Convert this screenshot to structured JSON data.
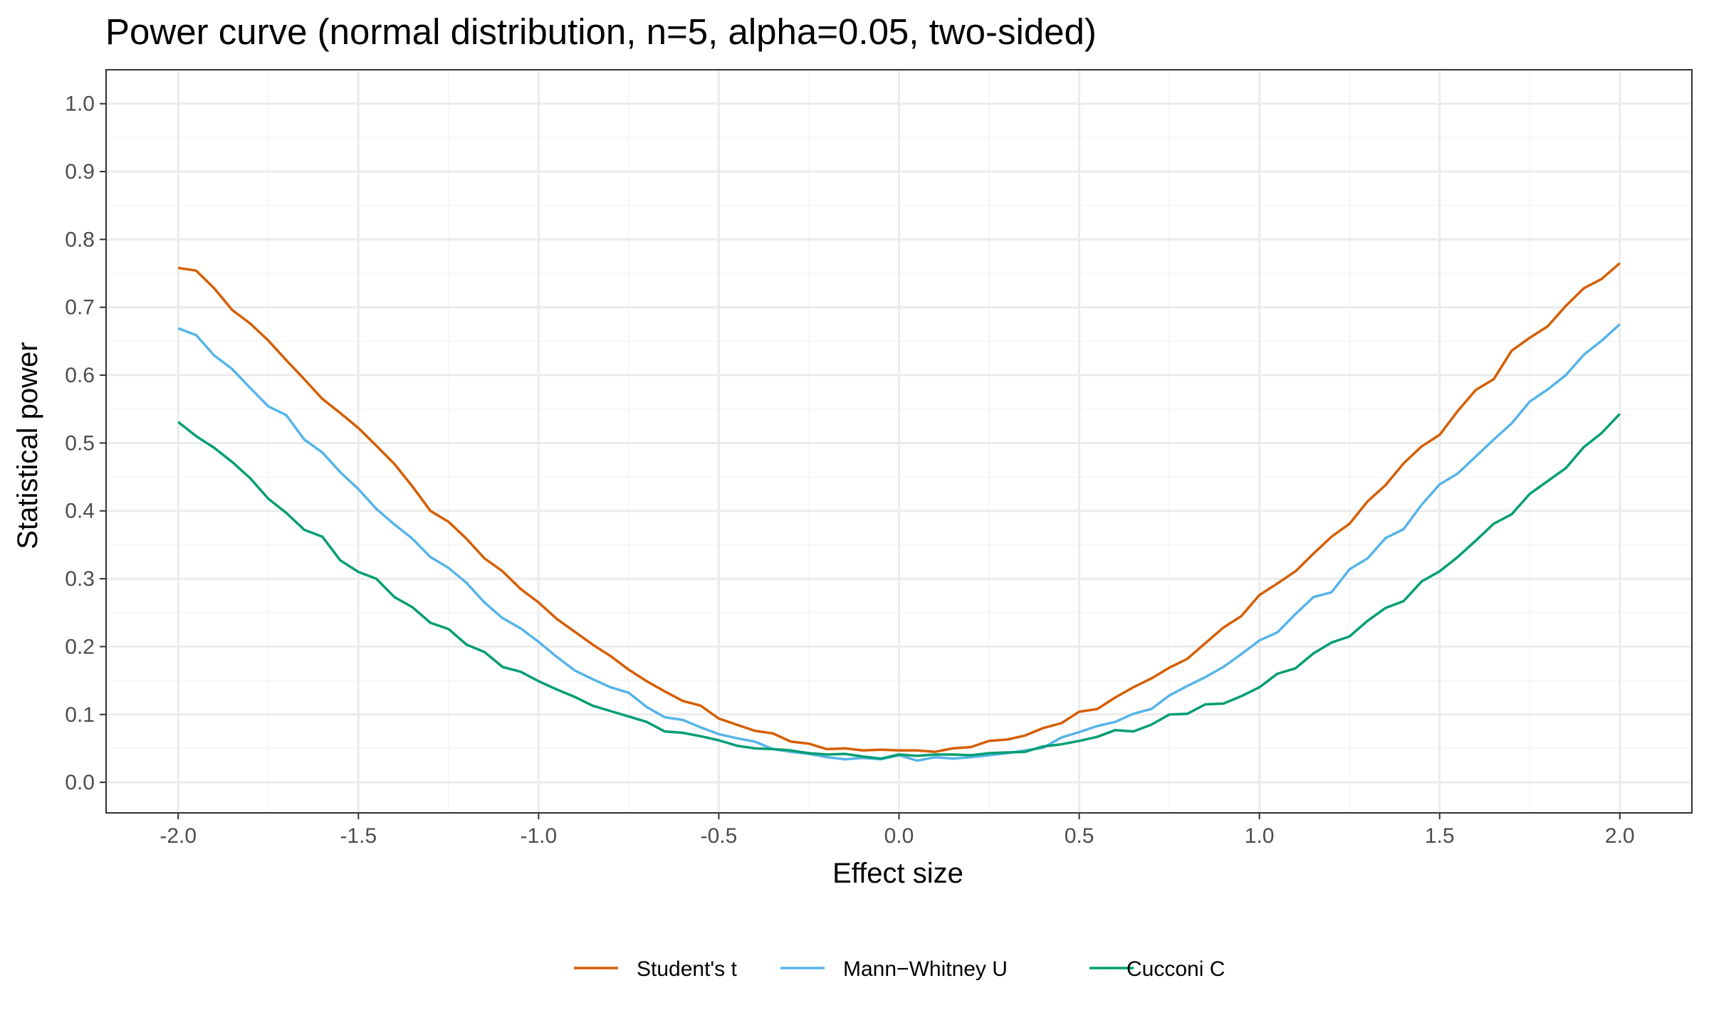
{
  "chart_data": {
    "type": "line",
    "title": "Power curve (normal distribution, n=5, alpha=0.05, two-sided)",
    "xlabel": "Effect size",
    "ylabel": "Statistical power",
    "xlim": [
      -2.2,
      2.2
    ],
    "ylim": [
      -0.045,
      1.05
    ],
    "x_ticks": [
      -2.0,
      -1.5,
      -1.0,
      -0.5,
      0.0,
      0.5,
      1.0,
      1.5,
      2.0
    ],
    "x_tick_labels": [
      "-2.0",
      "-1.5",
      "-1.0",
      "-0.5",
      "0.0",
      "0.5",
      "1.0",
      "1.5",
      "2.0"
    ],
    "y_ticks": [
      0.0,
      0.1,
      0.2,
      0.3,
      0.4,
      0.5,
      0.6,
      0.7,
      0.8,
      0.9,
      1.0
    ],
    "y_tick_labels": [
      "0.0",
      "0.1",
      "0.2",
      "0.3",
      "0.4",
      "0.5",
      "0.6",
      "0.7",
      "0.8",
      "0.9",
      "1.0"
    ],
    "grid": true,
    "legend_position": "bottom",
    "x": [
      -2.0,
      -1.95,
      -1.9,
      -1.85,
      -1.8,
      -1.75,
      -1.7,
      -1.65,
      -1.6,
      -1.55,
      -1.5,
      -1.45,
      -1.4,
      -1.35,
      -1.3,
      -1.25,
      -1.2,
      -1.15,
      -1.1,
      -1.05,
      -1.0,
      -0.95,
      -0.9,
      -0.85,
      -0.8,
      -0.75,
      -0.7,
      -0.65,
      -0.6,
      -0.55,
      -0.5,
      -0.45,
      -0.4,
      -0.35,
      -0.3,
      -0.25,
      -0.2,
      -0.15,
      -0.1,
      -0.05,
      0.0,
      0.05,
      0.1,
      0.15,
      0.2,
      0.25,
      0.3,
      0.35,
      0.4,
      0.45,
      0.5,
      0.55,
      0.6,
      0.65,
      0.7,
      0.75,
      0.8,
      0.85,
      0.9,
      0.95,
      1.0,
      1.05,
      1.1,
      1.15,
      1.2,
      1.25,
      1.3,
      1.35,
      1.4,
      1.45,
      1.5,
      1.55,
      1.6,
      1.65,
      1.7,
      1.75,
      1.8,
      1.85,
      1.9,
      1.95,
      2.0
    ],
    "series": [
      {
        "name": "Student's t",
        "color": "#D55E00",
        "values": [
          0.758,
          0.754,
          0.728,
          0.696,
          0.676,
          0.651,
          0.622,
          0.594,
          0.565,
          0.544,
          0.522,
          0.496,
          0.469,
          0.436,
          0.4,
          0.384,
          0.359,
          0.33,
          0.311,
          0.285,
          0.265,
          0.241,
          0.222,
          0.203,
          0.186,
          0.166,
          0.149,
          0.134,
          0.12,
          0.113,
          0.094,
          0.085,
          0.076,
          0.072,
          0.06,
          0.057,
          0.049,
          0.05,
          0.047,
          0.048,
          0.047,
          0.047,
          0.045,
          0.05,
          0.052,
          0.061,
          0.063,
          0.069,
          0.08,
          0.087,
          0.104,
          0.108,
          0.125,
          0.14,
          0.153,
          0.169,
          0.182,
          0.205,
          0.228,
          0.245,
          0.276,
          0.293,
          0.311,
          0.337,
          0.362,
          0.381,
          0.414,
          0.438,
          0.47,
          0.495,
          0.512,
          0.547,
          0.578,
          0.594,
          0.636,
          0.655,
          0.672,
          0.702,
          0.728,
          0.742,
          0.765
        ]
      },
      {
        "name": "Mann−Whitney U",
        "color": "#56B4E9",
        "values": [
          0.669,
          0.659,
          0.629,
          0.609,
          0.581,
          0.554,
          0.541,
          0.505,
          0.486,
          0.457,
          0.432,
          0.403,
          0.38,
          0.359,
          0.332,
          0.316,
          0.294,
          0.265,
          0.242,
          0.227,
          0.207,
          0.185,
          0.165,
          0.152,
          0.14,
          0.132,
          0.111,
          0.096,
          0.092,
          0.081,
          0.071,
          0.065,
          0.06,
          0.049,
          0.045,
          0.042,
          0.037,
          0.034,
          0.036,
          0.034,
          0.04,
          0.032,
          0.037,
          0.035,
          0.037,
          0.04,
          0.043,
          0.047,
          0.051,
          0.066,
          0.074,
          0.083,
          0.089,
          0.101,
          0.108,
          0.128,
          0.142,
          0.155,
          0.17,
          0.189,
          0.209,
          0.221,
          0.248,
          0.273,
          0.28,
          0.314,
          0.33,
          0.36,
          0.373,
          0.409,
          0.439,
          0.455,
          0.48,
          0.505,
          0.529,
          0.561,
          0.579,
          0.6,
          0.63,
          0.651,
          0.675
        ]
      },
      {
        "name": "Cucconi C",
        "color": "#009E73",
        "values": [
          0.531,
          0.51,
          0.493,
          0.472,
          0.448,
          0.418,
          0.397,
          0.372,
          0.362,
          0.327,
          0.31,
          0.3,
          0.273,
          0.258,
          0.235,
          0.226,
          0.203,
          0.192,
          0.17,
          0.163,
          0.149,
          0.137,
          0.126,
          0.113,
          0.105,
          0.097,
          0.089,
          0.075,
          0.073,
          0.068,
          0.062,
          0.054,
          0.05,
          0.049,
          0.047,
          0.043,
          0.041,
          0.042,
          0.038,
          0.035,
          0.041,
          0.039,
          0.041,
          0.041,
          0.04,
          0.043,
          0.044,
          0.045,
          0.053,
          0.056,
          0.061,
          0.067,
          0.077,
          0.075,
          0.085,
          0.1,
          0.101,
          0.115,
          0.116,
          0.127,
          0.14,
          0.16,
          0.168,
          0.19,
          0.206,
          0.215,
          0.238,
          0.257,
          0.267,
          0.296,
          0.311,
          0.332,
          0.356,
          0.381,
          0.395,
          0.425,
          0.444,
          0.463,
          0.494,
          0.515,
          0.543
        ]
      }
    ]
  },
  "colors": {
    "panel_border": "#333333",
    "grid_major": "#ebebeb",
    "grid_minor": "#f5f5f5",
    "tick_text": "#4d4d4d"
  }
}
